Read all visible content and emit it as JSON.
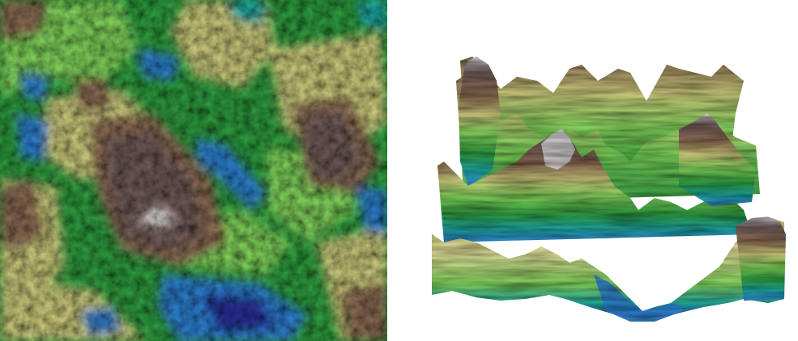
{
  "figure": {
    "left_panel": "terrain-heightmap-topdown",
    "right_panel": "terrain-3d-perspective"
  },
  "colors": {
    "deep_water": "#2a2f96",
    "water": "#2f7fcf",
    "shallow": "#1fa6a0",
    "lowland": "#2e9a3e",
    "grass": "#7fcf5a",
    "plain": "#c9c77a",
    "hill": "#8a6a52",
    "mountain": "#6e5a58",
    "peak": "#d8d8dc",
    "background": "#ffffff"
  }
}
